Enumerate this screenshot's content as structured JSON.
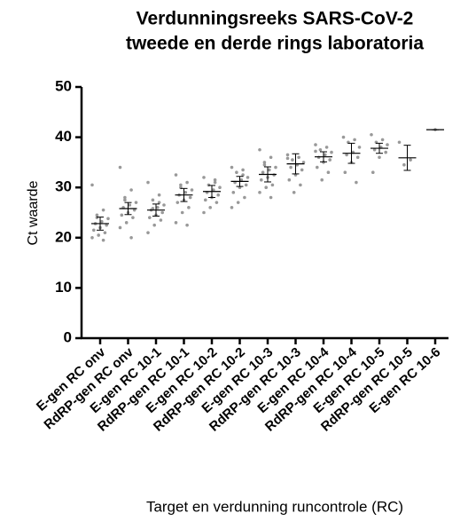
{
  "chart_data": {
    "type": "dot_plot",
    "title": [
      "Verdunningsreeks SARS-CoV-2",
      "tweede en derde rings laboratoria"
    ],
    "y_label": "Ct waarde",
    "x_label": "Target en verdunning runcontrole  (RC)",
    "categories": [
      "E-gen RC onv",
      "RdRP-gen RC onv",
      "E-gen RC 10-1",
      "RdRP-gen RC 10-1",
      "E-gen RC 10-2",
      "RdRP-gen RC 10-2",
      "E-gen RC 10-3",
      "RdRP-gen RC 10-3",
      "E-gen RC 10-4",
      "RdRP-gen RC 10-4",
      "E-gen RC 10-5",
      "RdRP-gen RC 10-5",
      "E-gen RC 10-6"
    ],
    "means": [
      22.8,
      25.8,
      25.5,
      28.5,
      29.2,
      31.2,
      32.6,
      34.7,
      36.1,
      36.8,
      37.8,
      35.9,
      41.5
    ],
    "errors": [
      1.3,
      1.2,
      1.2,
      1.3,
      1.2,
      1.0,
      1.5,
      2.0,
      1.0,
      2.0,
      1.0,
      2.5,
      0
    ],
    "points": [
      [
        30.5,
        25.5,
        24.5,
        23.8,
        23.2,
        22.8,
        22.5,
        22.0,
        21.5,
        21.0,
        20.5,
        20.0,
        19.5,
        24.0
      ],
      [
        34.0,
        29.5,
        28.0,
        27.0,
        26.5,
        26.0,
        25.5,
        25.0,
        24.5,
        24.0,
        23.0,
        22.0,
        20.0,
        27.5
      ],
      [
        31.0,
        28.5,
        27.5,
        26.5,
        26.0,
        25.5,
        25.0,
        24.5,
        24.0,
        23.5,
        22.5,
        21.0,
        27.0,
        25.8
      ],
      [
        32.5,
        31.0,
        30.5,
        29.5,
        29.0,
        28.5,
        28.0,
        27.5,
        27.0,
        26.0,
        25.0,
        23.0,
        22.5,
        30.0
      ],
      [
        32.0,
        31.5,
        30.5,
        30.0,
        29.5,
        29.0,
        28.5,
        28.0,
        27.5,
        27.0,
        26.0,
        25.0,
        31.0
      ],
      [
        34.0,
        33.5,
        33.0,
        32.0,
        31.5,
        31.0,
        30.5,
        30.0,
        29.0,
        28.0,
        27.0,
        26.0,
        32.5
      ],
      [
        37.5,
        36.0,
        35.0,
        34.0,
        33.5,
        33.0,
        32.5,
        32.0,
        31.5,
        30.5,
        30.0,
        29.0,
        28.0,
        34.5
      ],
      [
        36.5,
        36.0,
        35.5,
        35.0,
        34.5,
        34.0,
        33.5,
        32.5,
        31.5,
        30.5,
        29.0,
        35.8
      ],
      [
        38.5,
        38.0,
        37.5,
        37.0,
        36.5,
        36.0,
        35.5,
        35.0,
        34.0,
        33.0,
        31.5,
        37.2
      ],
      [
        40.0,
        39.5,
        39.0,
        38.0,
        37.0,
        36.5,
        36.0,
        35.0,
        33.0,
        31.0
      ],
      [
        40.5,
        39.5,
        39.0,
        38.5,
        38.0,
        37.5,
        37.0,
        36.0,
        33.0
      ],
      [
        39.0,
        35.5,
        34.5
      ],
      [
        41.5
      ]
    ],
    "ylim": [
      0,
      50
    ],
    "yticks": [
      0,
      10,
      20,
      30,
      40,
      50
    ],
    "point_color": "#999999",
    "bar_color": "#000000"
  }
}
